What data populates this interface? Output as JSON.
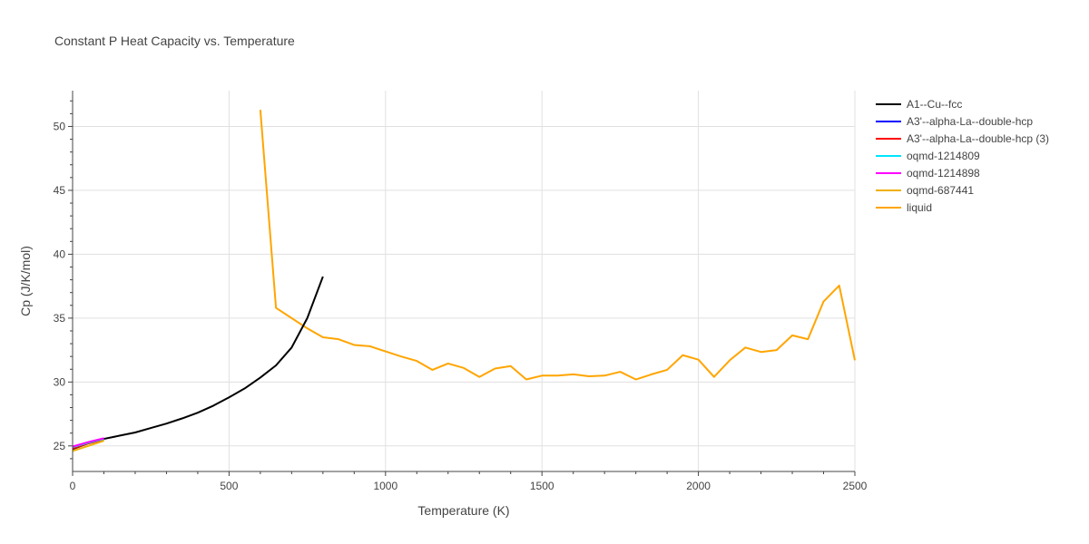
{
  "chart_data": {
    "type": "line",
    "title": "Constant P Heat Capacity vs. Temperature",
    "xlabel": "Temperature (K)",
    "ylabel": "Cp (J/K/mol)",
    "xlim": [
      0,
      2500
    ],
    "ylim": [
      23.0,
      52.8
    ],
    "xticks": [
      0,
      500,
      1000,
      1500,
      2000,
      2500
    ],
    "xtick_labels": [
      "0",
      "500",
      "1000",
      "1500",
      "2000",
      "2500"
    ],
    "yticks": [
      25,
      30,
      35,
      40,
      45,
      50
    ],
    "ytick_labels": [
      "25",
      "30",
      "35",
      "40",
      "45",
      "50"
    ],
    "grid": true,
    "legend_position": "right",
    "series": [
      {
        "name": "A1--Cu--fcc",
        "color": "#000000",
        "x": [
          0,
          50,
          100,
          150,
          200,
          250,
          300,
          350,
          400,
          450,
          500,
          550,
          600,
          650,
          700,
          750,
          800
        ],
        "y": [
          24.75,
          25.2,
          25.55,
          25.8,
          26.05,
          26.4,
          26.75,
          27.15,
          27.6,
          28.15,
          28.8,
          29.5,
          30.35,
          31.3,
          32.7,
          35.0,
          38.25
        ]
      },
      {
        "name": "A3'--alpha-La--double-hcp",
        "color": "#0000ff",
        "x": [
          0,
          50,
          100
        ],
        "y": [
          24.85,
          25.25,
          25.55
        ]
      },
      {
        "name": "A3'--alpha-La--double-hcp (3)",
        "color": "#ff0000",
        "x": [
          0,
          50,
          100
        ],
        "y": [
          24.8,
          25.2,
          25.5
        ]
      },
      {
        "name": "oqmd-1214809",
        "color": "#00e5ff",
        "x": [
          0,
          50,
          100
        ],
        "y": [
          24.9,
          25.25,
          25.55
        ]
      },
      {
        "name": "oqmd-1214898",
        "color": "#ff00ff",
        "x": [
          0,
          50,
          100
        ],
        "y": [
          24.95,
          25.3,
          25.6
        ]
      },
      {
        "name": "oqmd-687441",
        "color": "#f0b000",
        "x": [
          0,
          50,
          100
        ],
        "y": [
          24.6,
          25.0,
          25.4
        ]
      },
      {
        "name": "liquid",
        "color": "#ffa500",
        "x": [
          600,
          650,
          700,
          750,
          800,
          850,
          900,
          950,
          1000,
          1050,
          1100,
          1150,
          1200,
          1250,
          1300,
          1350,
          1400,
          1450,
          1500,
          1550,
          1600,
          1650,
          1700,
          1750,
          1800,
          1850,
          1900,
          1950,
          2000,
          2050,
          2100,
          2150,
          2200,
          2250,
          2300,
          2350,
          2400,
          2450,
          2500
        ],
        "y": [
          51.3,
          35.8,
          35.0,
          34.2,
          33.5,
          33.35,
          32.9,
          32.8,
          32.4,
          32.0,
          31.65,
          30.95,
          31.45,
          31.1,
          30.4,
          31.05,
          31.25,
          30.2,
          30.5,
          30.5,
          30.6,
          30.45,
          30.5,
          30.8,
          30.2,
          30.6,
          30.95,
          32.1,
          31.75,
          30.4,
          31.7,
          32.7,
          32.35,
          32.5,
          33.65,
          33.35,
          36.3,
          37.55,
          31.7
        ]
      }
    ]
  }
}
